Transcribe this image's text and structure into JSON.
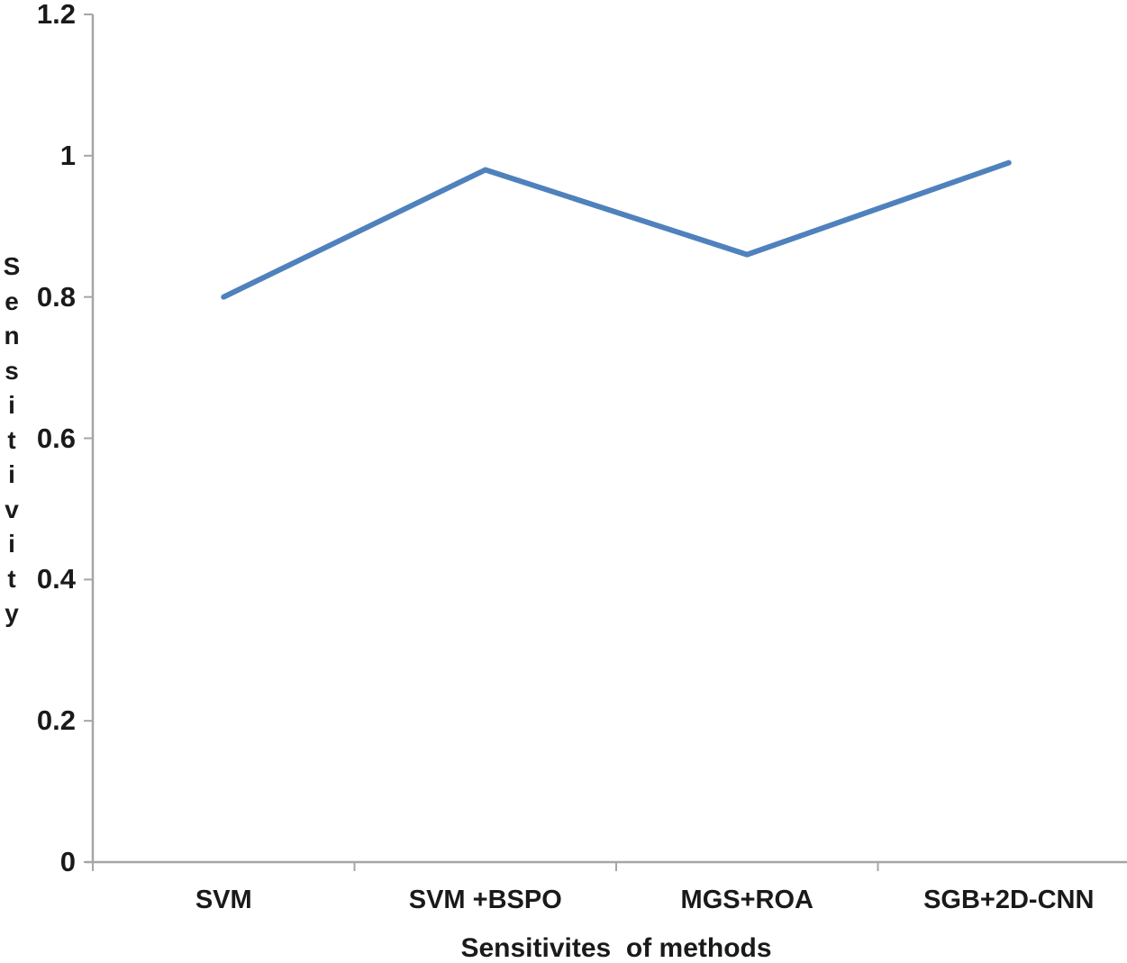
{
  "chart_data": {
    "type": "line",
    "categories": [
      "SVM",
      "SVM +BSPO",
      "MGS+ROA",
      "SGB+2D-CNN"
    ],
    "values": [
      0.8,
      0.98,
      0.86,
      0.99
    ],
    "title": "",
    "xlabel": "Sensitivites  of methods",
    "ylabel": "Sensitivity",
    "ylim": [
      0,
      1.2
    ],
    "ytick_labels": [
      "1.2",
      "1",
      "0.8",
      "0.6",
      "0.4",
      "0.2",
      "0"
    ],
    "ytick_values": [
      1.2,
      1,
      0.8,
      0.6,
      0.4,
      0.2,
      0
    ],
    "grid": false,
    "legend_position": "none",
    "line_color": "#4F81BD",
    "axis_color": "#A6A6A6",
    "text_color": "#1A1A1A"
  }
}
